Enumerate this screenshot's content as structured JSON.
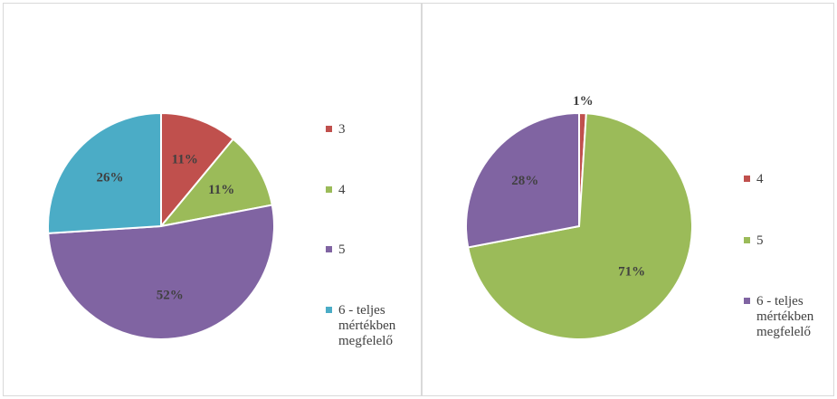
{
  "chart_data": [
    {
      "type": "pie",
      "categories": [
        "3",
        "4",
        "5",
        "6 - teljes mértékben megfelelő"
      ],
      "values": [
        11,
        11,
        52,
        26
      ],
      "value_labels": [
        "11%",
        "11%",
        "52%",
        "26%"
      ],
      "colors": [
        "#c0504d",
        "#9bbb59",
        "#8064a2",
        "#4bacc6"
      ]
    },
    {
      "type": "pie",
      "categories": [
        "4",
        "5",
        "6 - teljes mértékben megfelelő"
      ],
      "values": [
        1,
        71,
        28
      ],
      "value_labels": [
        "1%",
        "71%",
        "28%"
      ],
      "colors": [
        "#c0504d",
        "#9bbb59",
        "#8064a2"
      ]
    }
  ]
}
